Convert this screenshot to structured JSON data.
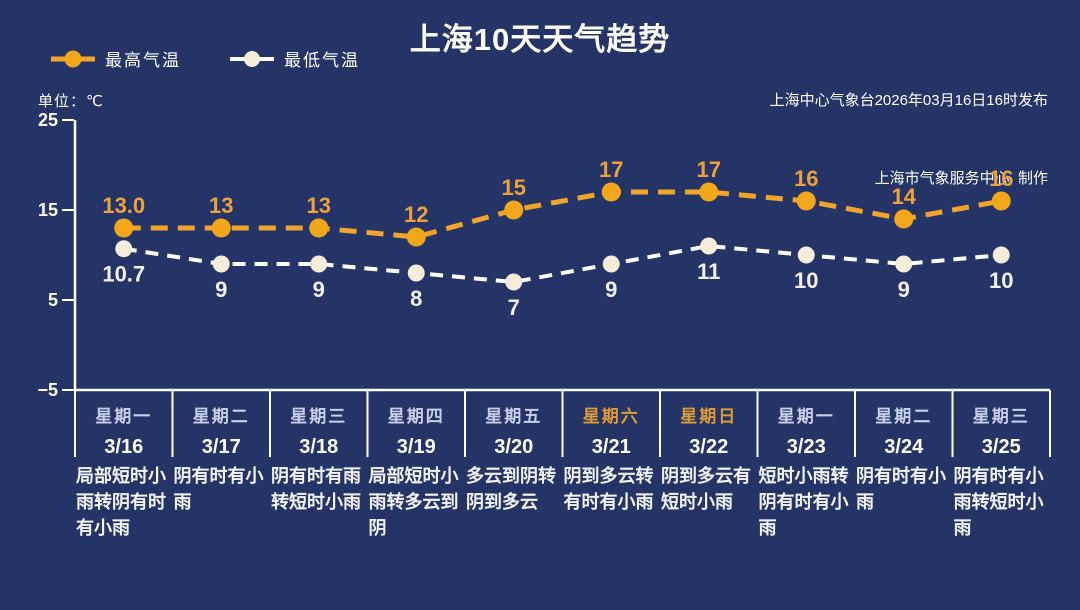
{
  "header": {
    "title": "上海10天天气趋势",
    "publisher_line1": "上海中心气象台2026年03月16日16时发布",
    "publisher_line2": "上海市气象服务中心  制作",
    "unit_label": "单位：℃"
  },
  "legend": {
    "high_label": "最高气温",
    "low_label": "最低气温"
  },
  "colors": {
    "background": "#243466",
    "axis": "#ffffff",
    "tick_text": "#ffffff",
    "weekday": "#c7d0ea",
    "weekend": "#de9b35",
    "date_text": "#ffffff",
    "weather_text": "#f4f5f9",
    "high_line": "#f0a429",
    "high_marker": "#f2a71b",
    "high_label": "#eda13b",
    "low_line": "#ffffff",
    "low_marker": "#f5edda",
    "low_label": "#f2f2f6"
  },
  "chart_data": {
    "type": "line",
    "title": "上海10天天气趋势",
    "xlabel": "",
    "ylabel": "单位：℃",
    "ylim": [
      -5,
      25
    ],
    "grid": false,
    "legend_position": "top-left",
    "y_ticks": [
      25,
      15,
      5,
      -5
    ],
    "y_tick_labels": [
      "25",
      "15",
      "5",
      "−5"
    ],
    "categories": [
      "3/16",
      "3/17",
      "3/18",
      "3/19",
      "3/20",
      "3/21",
      "3/22",
      "3/23",
      "3/24",
      "3/25"
    ],
    "series": [
      {
        "name": "最高气温",
        "values": [
          13.0,
          13,
          13,
          12,
          15,
          17,
          17,
          16,
          14,
          16
        ],
        "display": [
          "13.0",
          "13",
          "13",
          "12",
          "15",
          "17",
          "17",
          "16",
          "14",
          "16"
        ],
        "line_color": "#f0a429",
        "marker_color": "#f2a71b",
        "label_color": "#eda13b",
        "label_side": "above"
      },
      {
        "name": "最低气温",
        "values": [
          10.7,
          9,
          9,
          8,
          7,
          9,
          11,
          10,
          9,
          10
        ],
        "display": [
          "10.7",
          "9",
          "9",
          "8",
          "7",
          "9",
          "11",
          "10",
          "9",
          "10"
        ],
        "line_color": "#ffffff",
        "marker_color": "#f5edda",
        "label_color": "#f2f2f6",
        "label_side": "below"
      }
    ]
  },
  "days": [
    {
      "weekday": "星期一",
      "date": "3/16",
      "weather": "局部短时小雨转阴有时有小雨",
      "highlight": false
    },
    {
      "weekday": "星期二",
      "date": "3/17",
      "weather": "阴有时有小雨",
      "highlight": false
    },
    {
      "weekday": "星期三",
      "date": "3/18",
      "weather": "阴有时有雨转短时小雨",
      "highlight": false
    },
    {
      "weekday": "星期四",
      "date": "3/19",
      "weather": "局部短时小雨转多云到阴",
      "highlight": false
    },
    {
      "weekday": "星期五",
      "date": "3/20",
      "weather": "多云到阴转阴到多云",
      "highlight": false
    },
    {
      "weekday": "星期六",
      "date": "3/21",
      "weather": "阴到多云转有时有小雨",
      "highlight": true
    },
    {
      "weekday": "星期日",
      "date": "3/22",
      "weather": "阴到多云有短时小雨",
      "highlight": true
    },
    {
      "weekday": "星期一",
      "date": "3/23",
      "weather": "短时小雨转阴有时有小雨",
      "highlight": false
    },
    {
      "weekday": "星期二",
      "date": "3/24",
      "weather": "阴有时有小雨",
      "highlight": false
    },
    {
      "weekday": "星期三",
      "date": "3/25",
      "weather": "阴有时有小雨转短时小雨",
      "highlight": false
    }
  ]
}
